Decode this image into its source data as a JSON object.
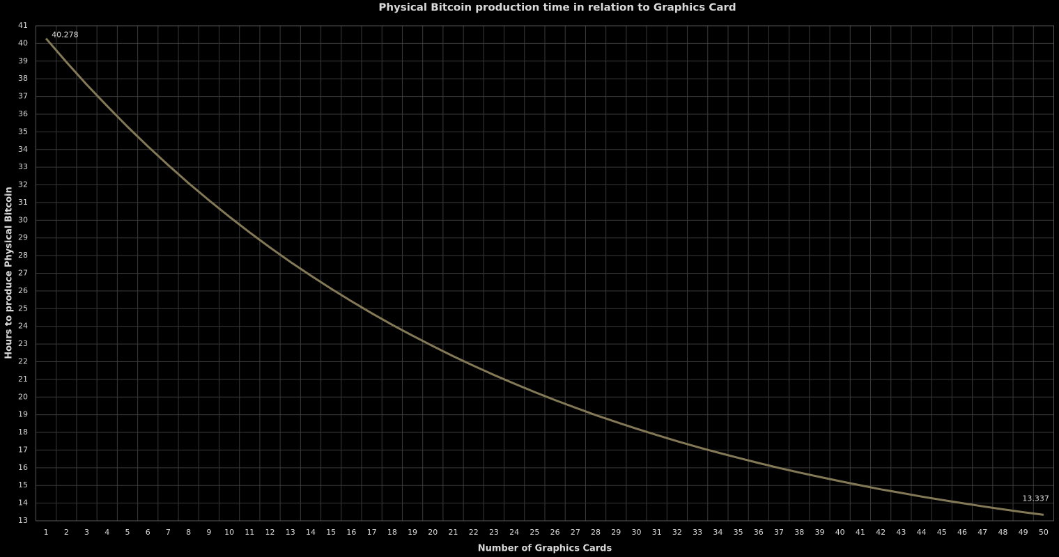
{
  "chart_data": {
    "type": "line",
    "title": "Physical Bitcoin production time in relation to Graphics Card",
    "x_label": "Number of Graphics Cards",
    "y_label": "Hours to produce Physical Bitcoin",
    "categories": [
      "1",
      "2",
      "3",
      "4",
      "5",
      "6",
      "7",
      "8",
      "9",
      "10",
      "11",
      "12",
      "13",
      "14",
      "15",
      "16",
      "17",
      "18",
      "19",
      "20",
      "21",
      "22",
      "23",
      "24",
      "25",
      "26",
      "27",
      "28",
      "29",
      "30",
      "31",
      "32",
      "33",
      "34",
      "35",
      "36",
      "37",
      "38",
      "39",
      "40",
      "41",
      "42",
      "43",
      "44",
      "45",
      "46",
      "47",
      "48",
      "49",
      "50"
    ],
    "values": [
      40.278,
      38.95,
      37.67,
      36.46,
      35.29,
      34.18,
      33.12,
      32.1,
      31.13,
      30.2,
      29.31,
      28.46,
      27.64,
      26.87,
      26.13,
      25.42,
      24.74,
      24.09,
      23.47,
      22.88,
      22.31,
      21.77,
      21.25,
      20.76,
      20.28,
      19.83,
      19.4,
      18.98,
      18.59,
      18.21,
      17.85,
      17.5,
      17.17,
      16.86,
      16.56,
      16.27,
      15.99,
      15.73,
      15.48,
      15.24,
      15.01,
      14.78,
      14.58,
      14.37,
      14.18,
      14.0,
      13.82,
      13.65,
      13.49,
      13.337
    ],
    "color": "#847957",
    "data_labels": "first-last",
    "ylim": [
      13,
      41
    ],
    "yticks": [
      13,
      14,
      15,
      16,
      17,
      18,
      19,
      20,
      21,
      22,
      23,
      24,
      25,
      26,
      27,
      28,
      29,
      30,
      31,
      32,
      33,
      34,
      35,
      36,
      37,
      38,
      39,
      40,
      41
    ],
    "grid": true
  }
}
